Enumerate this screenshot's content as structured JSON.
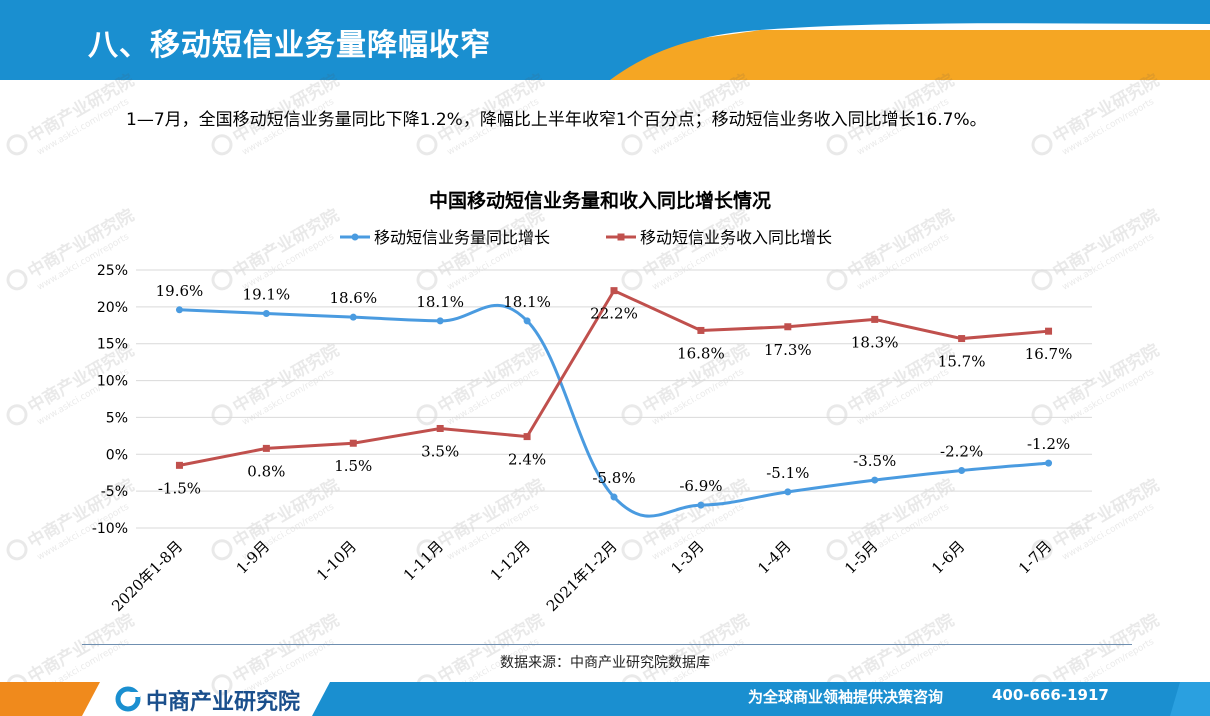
{
  "header": {
    "title": "八、移动短信业务量降幅收窄"
  },
  "summary": {
    "text": "1—7月，全国移动短信业务量同比下降1.2%，降幅比上半年收窄1个百分点；移动短信业务收入同比增长16.7%。"
  },
  "source": {
    "text": "数据来源：中商产业研究院数据库"
  },
  "footer": {
    "logo": "中商产业研究院",
    "slogan": "为全球商业领袖提供决策咨询",
    "phone": "400-666-1917"
  },
  "watermark": {
    "cn": "中商产业研究院",
    "url": "www.askci.com/reports"
  },
  "colors": {
    "header_blue": "#1a8fd0",
    "header_orange": "#f5a623",
    "series1": "#4a9be0",
    "series2": "#c0504d",
    "footer_blue": "#1a8fd0"
  },
  "chart_data": {
    "type": "line",
    "title": "中国移动短信业务量和收入同比增长情况",
    "categories": [
      "2020年1-8月",
      "1-9月",
      "1-10月",
      "1-11月",
      "1-12月",
      "2021年1-2月",
      "1-3月",
      "1-4月",
      "1-5月",
      "1-6月",
      "1-7月"
    ],
    "series": [
      {
        "name": "移动短信业务量同比增长",
        "values": [
          19.6,
          19.1,
          18.6,
          18.1,
          18.1,
          -5.8,
          -6.9,
          -5.1,
          -3.5,
          -2.2,
          -1.2
        ],
        "labels": [
          "19.6%",
          "19.1%",
          "18.6%",
          "18.1%",
          "18.1%",
          "-5.8%",
          "-6.9%",
          "-5.1%",
          "-3.5%",
          "-2.2%",
          "-1.2%"
        ]
      },
      {
        "name": "移动短信业务收入同比增长",
        "values": [
          -1.5,
          0.8,
          1.5,
          3.5,
          2.4,
          22.2,
          16.8,
          17.3,
          18.3,
          15.7,
          16.7
        ],
        "labels": [
          "-1.5%",
          "0.8%",
          "1.5%",
          "3.5%",
          "2.4%",
          "22.2%",
          "16.8%",
          "17.3%",
          "18.3%",
          "15.7%",
          "16.7%"
        ]
      }
    ],
    "yticks": [
      "25%",
      "20%",
      "15%",
      "10%",
      "5%",
      "0%",
      "-5%",
      "-10%"
    ],
    "ylim": [
      -10,
      25
    ],
    "grid": true,
    "legend": "top"
  }
}
